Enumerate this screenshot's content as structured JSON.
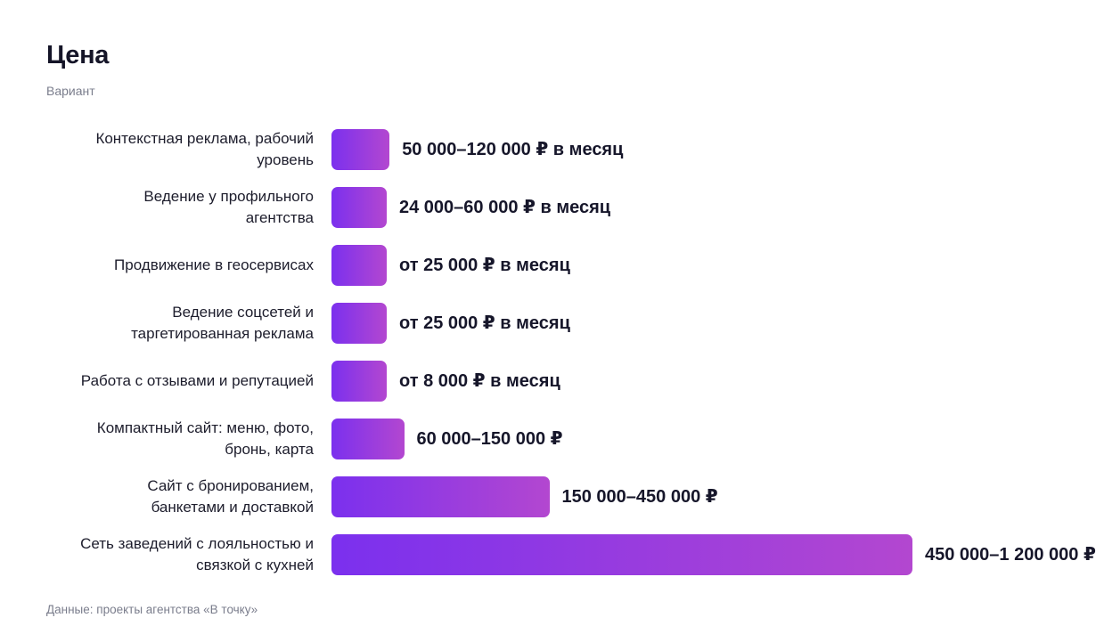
{
  "title": "Цена",
  "subtitle": "Вариант",
  "footer": "Данные: проекты агентства «В точку»",
  "colors": {
    "bar_start": "#7b30ee",
    "bar_end": "#b347d0",
    "text": "#16162a",
    "muted": "#7a7d8c"
  },
  "chart_data": {
    "type": "bar",
    "orientation": "horizontal",
    "unit": "₽",
    "categories": [
      "Контекстная реклама, рабочий уровень",
      "Ведение у профильного агентства",
      "Продвижение в геосервисах",
      "Ведение соцсетей и таргетированная реклама",
      "Работа с отзывами и репутацией",
      "Компактный сайт: меню, фото, бронь, карта",
      "Сайт с бронированием, банкетами и доставкой",
      "Сеть заведений с лояльностью и связкой с кухней"
    ],
    "label_lines": [
      [
        "Контекстная реклама, рабочий",
        "уровень"
      ],
      [
        "Ведение у профильного",
        "агентства"
      ],
      [
        "Продвижение в геосервисах"
      ],
      [
        "Ведение соцсетей и",
        "таргетированная реклама"
      ],
      [
        "Работа с отзывами и репутацией"
      ],
      [
        "Компактный сайт: меню, фото,",
        "бронь, карта"
      ],
      [
        "Сайт с бронированием,",
        "банкетами и доставкой"
      ],
      [
        "Сеть заведений с лояльностью и",
        "связкой с кухней"
      ]
    ],
    "values": [
      120000,
      60000,
      25000,
      25000,
      8000,
      150000,
      450000,
      1200000
    ],
    "value_labels": [
      "50 000–120 000 ₽ в месяц",
      "24 000–60 000 ₽ в месяц",
      "от 25 000 ₽ в месяц",
      "от 25 000 ₽ в месяц",
      "от 8 000 ₽ в месяц",
      "60 000–150 000 ₽",
      "150 000–450 000 ₽",
      "450 000–1 200 000 ₽"
    ],
    "xlim": [
      0,
      1200000
    ],
    "grid": false,
    "legend": "none"
  }
}
